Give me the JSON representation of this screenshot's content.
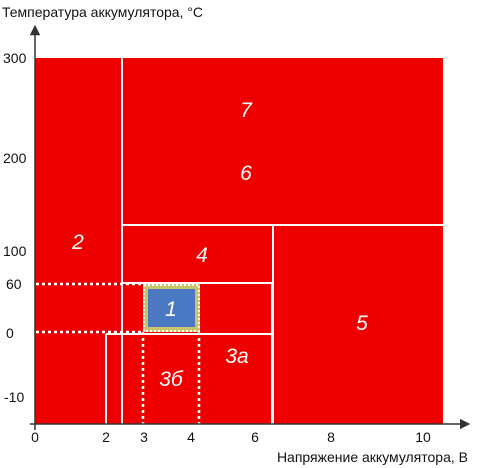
{
  "axes": {
    "y_title": "Температура аккумулятора, °C",
    "x_title": "Напряжение аккумулятора, В",
    "x_ticks": [
      "0",
      "2",
      "3",
      "4",
      "6",
      "8",
      "10"
    ],
    "y_ticks": [
      "300",
      "200",
      "100",
      "60",
      "0",
      "-10"
    ]
  },
  "zones": [
    "1",
    "2",
    "3а",
    "3б",
    "4",
    "5",
    "6",
    "7"
  ],
  "colors": {
    "zone_fill": "#ee0000",
    "safe_fill": "#4a78c2",
    "safe_border": "#c8c46a",
    "lines": "#ffffff",
    "axis": "#333333"
  }
}
